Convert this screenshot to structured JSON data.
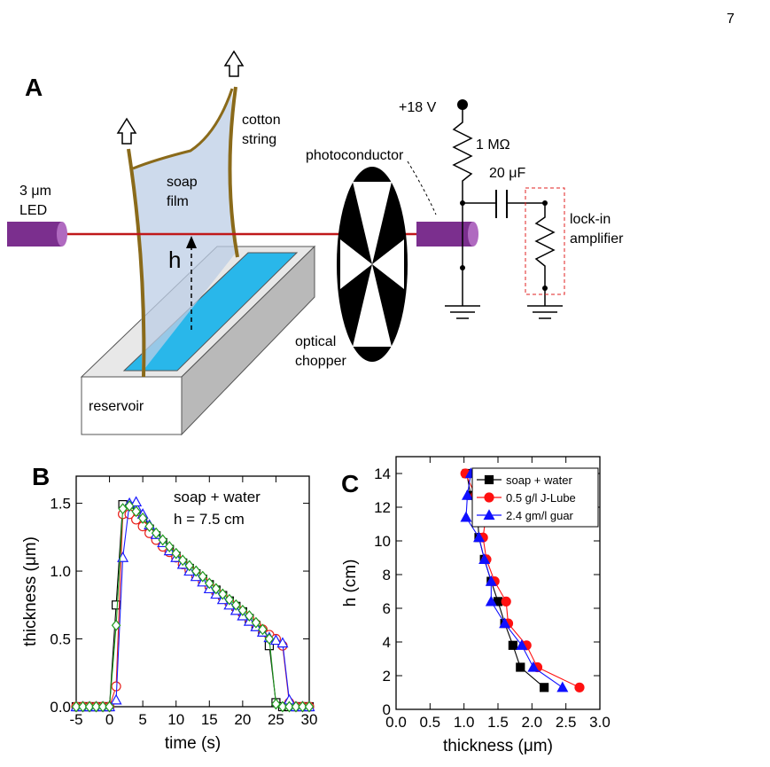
{
  "page_number": "7",
  "diagram": {
    "panel_label": "A",
    "string_label": [
      "cotton",
      "string"
    ],
    "led_label": [
      "3 μm",
      "LED"
    ],
    "film_label": [
      "soap",
      "film"
    ],
    "height_label": "h",
    "photoconductor_label": "photoconductor",
    "voltage_label": "+18 V",
    "resistor_label": "1 MΩ",
    "capacitor_label": "20 μF",
    "amplifier_label": [
      "lock-in",
      "amplifier"
    ],
    "chopper_label": [
      "optical",
      "chopper"
    ],
    "reservoir_label": "reservoir"
  },
  "chart_data": [
    {
      "type": "line",
      "panel_label": "B",
      "xlabel": "time (s)",
      "ylabel": "thickness (μm)",
      "annotations": [
        "soap + water",
        "h = 7.5 cm"
      ],
      "x": [
        -5,
        -4,
        -3,
        -2,
        -1,
        0,
        1,
        2,
        3,
        4,
        5,
        6,
        7,
        8,
        9,
        10,
        11,
        12,
        13,
        14,
        15,
        16,
        17,
        18,
        19,
        20,
        21,
        22,
        23,
        24,
        25,
        26,
        27,
        28,
        29,
        30
      ],
      "xlim": [
        -5,
        30
      ],
      "xticks": [
        -5,
        0,
        5,
        10,
        15,
        20,
        25,
        30
      ],
      "ylim": [
        0,
        1.7
      ],
      "yticks": [
        {
          "value": 0,
          "label": "0.0"
        },
        0.5,
        {
          "value": 1,
          "label": "1.0"
        },
        1.5
      ],
      "series": [
        {
          "color": "#000000",
          "marker": "square",
          "filled": false,
          "values": [
            0,
            0,
            0,
            0,
            0,
            0,
            0.75,
            1.49,
            1.46,
            1.41,
            1.36,
            1.31,
            1.26,
            1.21,
            1.16,
            1.11,
            1.06,
            1.02,
            0.98,
            0.94,
            0.9,
            0.86,
            0.82,
            0.78,
            0.74,
            0.7,
            0.65,
            0.6,
            0.55,
            0.45,
            0.03,
            0,
            0,
            0,
            0,
            0
          ]
        },
        {
          "color": "#e8201a",
          "marker": "circle",
          "filled": false,
          "values": [
            0,
            0,
            0,
            0,
            0,
            0,
            0.15,
            1.42,
            1.42,
            1.38,
            1.33,
            1.28,
            1.23,
            1.18,
            1.14,
            1.1,
            1.05,
            1.01,
            0.97,
            0.93,
            0.89,
            0.85,
            0.81,
            0.77,
            0.73,
            0.69,
            0.65,
            0.61,
            0.57,
            0.53,
            0.5,
            0.45,
            0.03,
            0,
            0,
            0
          ]
        },
        {
          "color": "#1a1aff",
          "marker": "triangle",
          "filled": false,
          "values": [
            0,
            0,
            0,
            0,
            0,
            0,
            0.05,
            1.1,
            1.5,
            1.51,
            1.42,
            1.34,
            1.27,
            1.21,
            1.15,
            1.1,
            1.05,
            1.0,
            0.96,
            0.92,
            0.87,
            0.83,
            0.79,
            0.75,
            0.71,
            0.67,
            0.63,
            0.59,
            0.55,
            0.51,
            0.49,
            0.47,
            0.05,
            0,
            0,
            0
          ]
        },
        {
          "color": "#1f9a1f",
          "marker": "diamond",
          "filled": false,
          "values": [
            0,
            0,
            0,
            0,
            0,
            0,
            0.6,
            1.46,
            1.48,
            1.44,
            1.39,
            1.33,
            1.28,
            1.23,
            1.18,
            1.13,
            1.08,
            1.04,
            1.0,
            0.96,
            0.91,
            0.87,
            0.83,
            0.79,
            0.75,
            0.71,
            0.67,
            0.62,
            0.57,
            0.5,
            0.02,
            0,
            0,
            0,
            0,
            0
          ]
        }
      ]
    },
    {
      "type": "line",
      "panel_label": "C",
      "xlabel": "thickness (μm)",
      "ylabel": "h (cm)",
      "legend": "upper right",
      "xlim": [
        0,
        3
      ],
      "xticks": [
        {
          "value": 0,
          "label": "0.0"
        },
        0.5,
        {
          "value": 1,
          "label": "1.0"
        },
        1.5,
        {
          "value": 2,
          "label": "2.0"
        },
        2.5,
        {
          "value": 3,
          "label": "3.0"
        }
      ],
      "ylim": [
        0,
        15
      ],
      "yticks": [
        0,
        2,
        4,
        6,
        8,
        10,
        12,
        14
      ],
      "series": [
        {
          "name": "soap + water",
          "color": "#000000",
          "marker": "square",
          "filled": true,
          "x": [
            1.04,
            1.1,
            1.2,
            1.22,
            1.3,
            1.4,
            1.5,
            1.6,
            1.72,
            1.83,
            2.18
          ],
          "values": [
            14,
            12.7,
            11.4,
            10.2,
            8.9,
            7.6,
            6.4,
            5.1,
            3.8,
            2.5,
            1.3
          ]
        },
        {
          "name": "0.5 g/l J-Lube",
          "color": "#ff1010",
          "marker": "circle",
          "filled": true,
          "x": [
            1.02,
            1.17,
            1.32,
            1.28,
            1.33,
            1.45,
            1.62,
            1.65,
            1.92,
            2.08,
            2.7
          ],
          "values": [
            14,
            12.7,
            11.4,
            10.2,
            8.9,
            7.6,
            6.4,
            5.1,
            3.8,
            2.5,
            1.3
          ]
        },
        {
          "name": "2.4 gm/l guar",
          "color": "#1010ff",
          "marker": "triangle",
          "filled": true,
          "x": [
            1.1,
            1.05,
            1.03,
            1.22,
            1.3,
            1.4,
            1.4,
            1.6,
            1.85,
            2.02,
            2.45
          ],
          "values": [
            14,
            12.7,
            11.4,
            10.2,
            8.9,
            7.6,
            6.4,
            5.1,
            3.8,
            2.5,
            1.3
          ]
        }
      ]
    }
  ]
}
